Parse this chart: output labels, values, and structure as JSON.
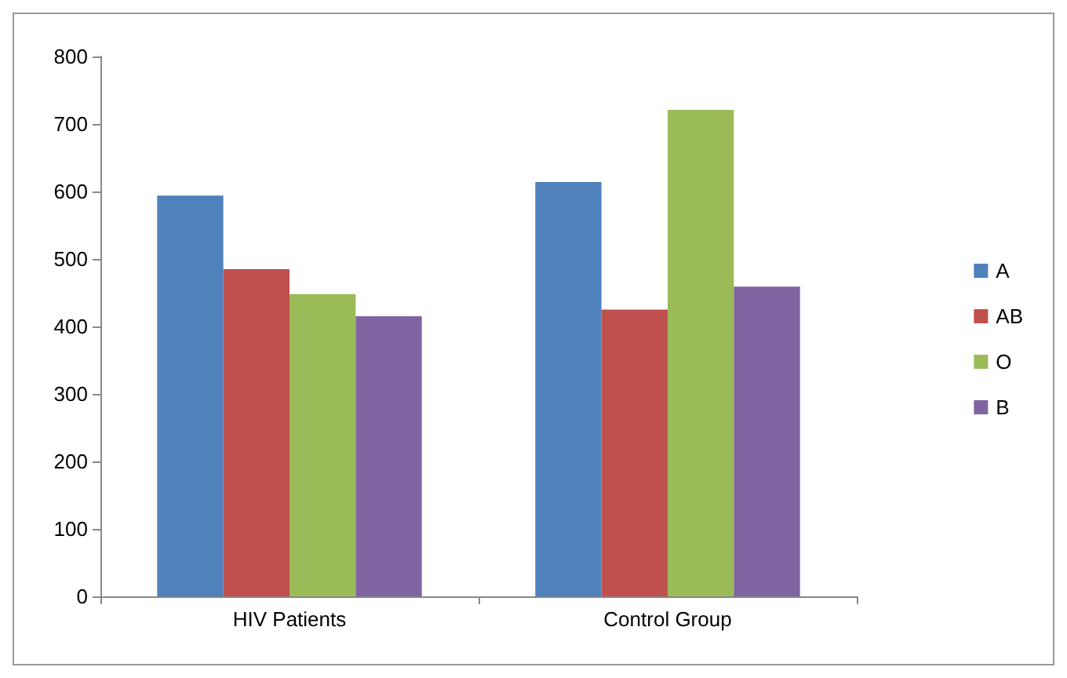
{
  "chart_data": {
    "type": "bar",
    "categories": [
      "HIV Patients",
      "Control Group"
    ],
    "series": [
      {
        "name": "A",
        "color": "#4f81bd",
        "values": [
          594,
          614
        ]
      },
      {
        "name": "AB",
        "color": "#c0504d",
        "values": [
          485,
          425
        ]
      },
      {
        "name": "O",
        "color": "#9bbb59",
        "values": [
          448,
          721
        ]
      },
      {
        "name": "B",
        "color": "#8064a2",
        "values": [
          415,
          459
        ]
      }
    ],
    "ylim": [
      0,
      800
    ],
    "yticks": [
      0,
      100,
      200,
      300,
      400,
      500,
      600,
      700,
      800
    ],
    "grid": false,
    "legend": "right"
  }
}
